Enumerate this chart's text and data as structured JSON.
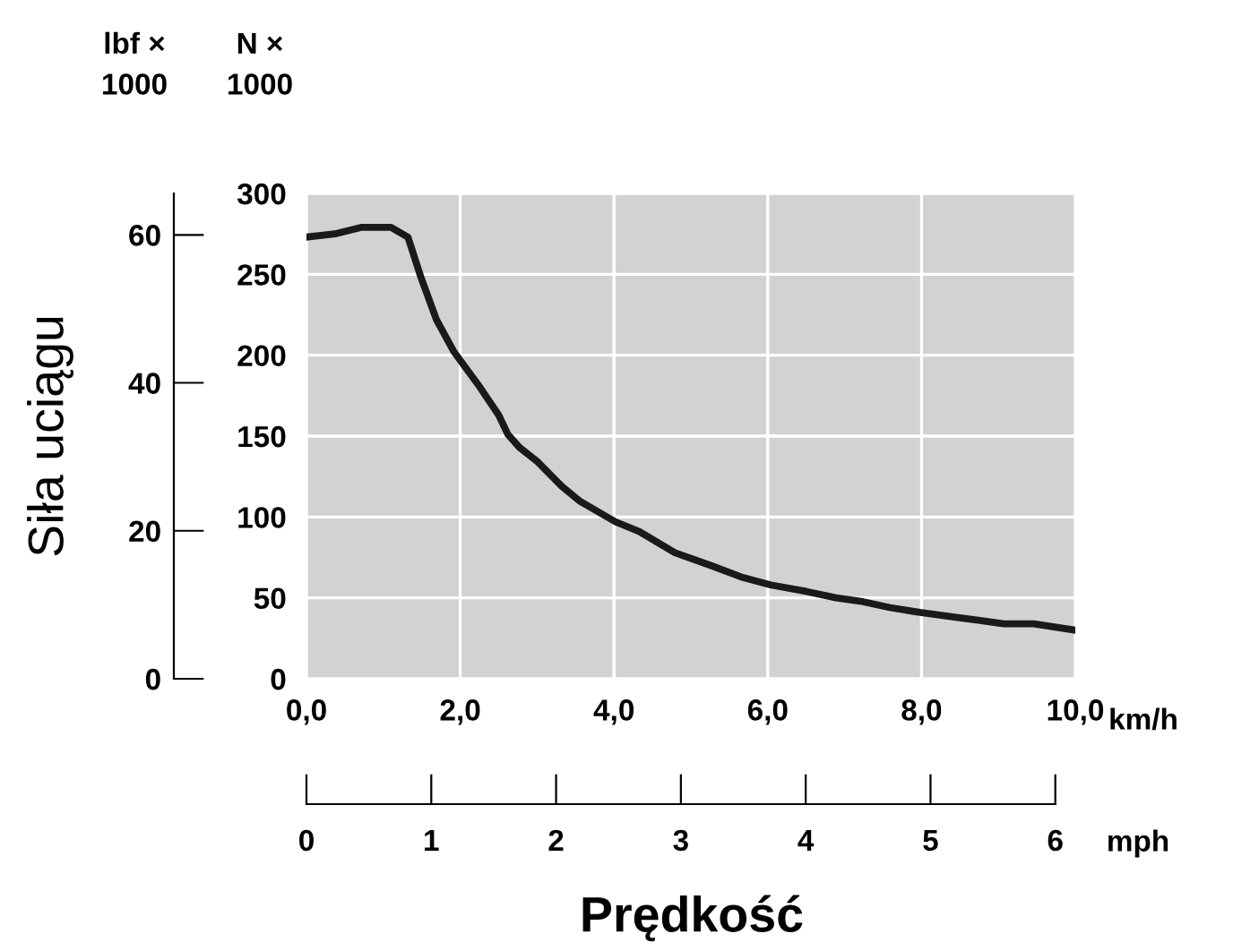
{
  "chart_data": {
    "type": "line",
    "y2label": "Siła uciągu",
    "xlabel": "Prędkość",
    "annotations": [
      "lbf ×\n1000",
      "N ×\n1000",
      "km/h",
      "mph"
    ],
    "x": [
      0,
      0.37,
      0.71,
      1.1,
      1.32,
      1.49,
      1.69,
      1.92,
      2.23,
      2.5,
      2.62,
      2.77,
      3.01,
      3.32,
      3.55,
      4.02,
      4.33,
      4.79,
      5.26,
      5.65,
      6.04,
      6.5,
      6.89,
      7.2,
      7.59,
      7.98,
      8.45,
      8.76,
      9.07,
      9.46,
      10.0
    ],
    "series": [
      {
        "color": "#1a1a1a",
        "values": [
          273,
          275,
          279,
          279,
          273,
          248,
          222,
          202,
          182,
          163,
          151,
          143,
          134,
          119,
          110,
          97,
          91,
          78,
          70,
          63,
          58,
          54,
          50,
          48,
          44,
          41,
          38,
          36,
          34,
          34,
          30
        ]
      }
    ],
    "xlim": [
      0,
      10
    ],
    "xticks": [
      {
        "value": 0,
        "label": "0,0"
      },
      {
        "value": 2,
        "label": "2,0"
      },
      {
        "value": 4,
        "label": "4,0"
      },
      {
        "value": 6,
        "label": "6,0"
      },
      {
        "value": 8,
        "label": "8,0"
      },
      {
        "value": 10,
        "label": "10,0"
      }
    ],
    "ylim": [
      0,
      300
    ],
    "yticks": [
      0,
      50,
      100,
      150,
      200,
      250,
      300
    ],
    "y2lim": [
      0,
      65.6
    ],
    "y2ticks": [
      0,
      20,
      40,
      60
    ],
    "x2lim": [
      0,
      6.16
    ],
    "x2ticks": [
      0,
      1,
      2,
      3,
      4,
      5,
      6
    ],
    "grid": true,
    "line_style": "solid",
    "marker": "none"
  }
}
